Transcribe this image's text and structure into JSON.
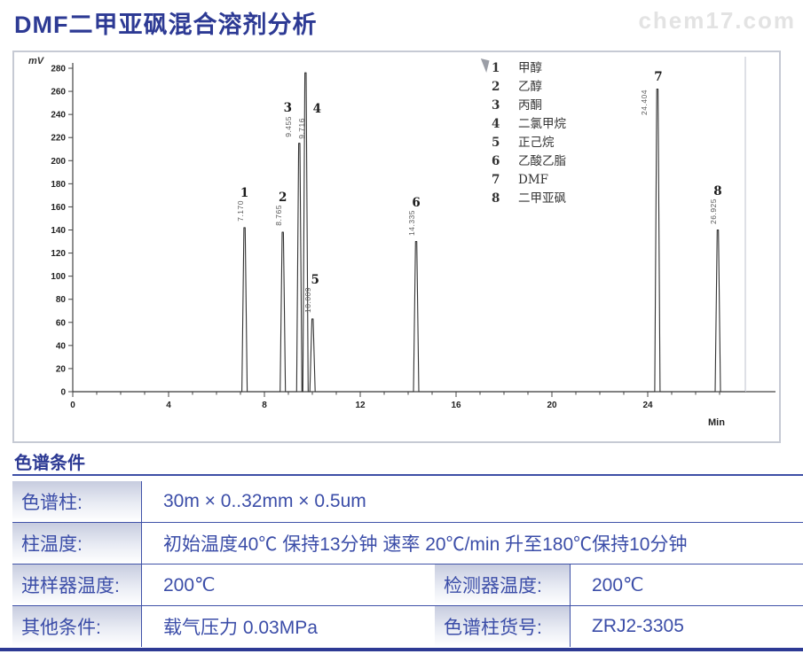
{
  "page": {
    "title": "DMF二甲亚砜混合溶剂分析",
    "watermark": "chem17.com"
  },
  "chart_data": {
    "type": "line",
    "title": "DMF二甲亚砜混合溶剂分析",
    "xlabel": "Min",
    "ylabel": "mV",
    "xlim": [
      0,
      28
    ],
    "ylim": [
      0,
      290
    ],
    "x_ticks": [
      0,
      4,
      8,
      12,
      16,
      20,
      24
    ],
    "y_ticks": [
      0,
      20,
      40,
      60,
      80,
      100,
      120,
      140,
      160,
      180,
      200,
      220,
      240,
      260,
      280
    ],
    "grid": false,
    "legend_position": "top-right-inside",
    "baseline_mv": 0,
    "peaks": [
      {
        "num": "1",
        "name": "甲醇",
        "rt": "7.170",
        "height_mv": 142
      },
      {
        "num": "2",
        "name": "乙醇",
        "rt": "8.765",
        "height_mv": 138
      },
      {
        "num": "3",
        "name": "丙酮",
        "rt": "9.455",
        "height_mv": 215
      },
      {
        "num": "4",
        "name": "二氯甲烷",
        "rt": "9.716",
        "height_mv": 276
      },
      {
        "num": "5",
        "name": "正己烷",
        "rt": "10.009",
        "height_mv": 63
      },
      {
        "num": "6",
        "name": "乙酸乙脂",
        "rt": "14.335",
        "height_mv": 130
      },
      {
        "num": "7",
        "name": "DMF",
        "rt": "24.404",
        "height_mv": 262
      },
      {
        "num": "8",
        "name": "二甲亚砜",
        "rt": "26.925",
        "height_mv": 140
      }
    ]
  },
  "conditions": {
    "header": "色谱条件",
    "rows": [
      {
        "label": "色谱柱:",
        "value": "30m × 0..32mm × 0.5um"
      },
      {
        "label": "柱温度:",
        "value": "初始温度40℃ 保持13分钟  速率  20℃/min 升至180℃保持10分钟"
      },
      {
        "label": "进样器温度:",
        "value": "200℃",
        "label2": "检测器温度:",
        "value2": "200℃"
      },
      {
        "label": "其他条件:",
        "value": "载气压力  0.03MPa",
        "label2": "色谱柱货号:",
        "value2": "ZRJ2-3305"
      }
    ]
  }
}
